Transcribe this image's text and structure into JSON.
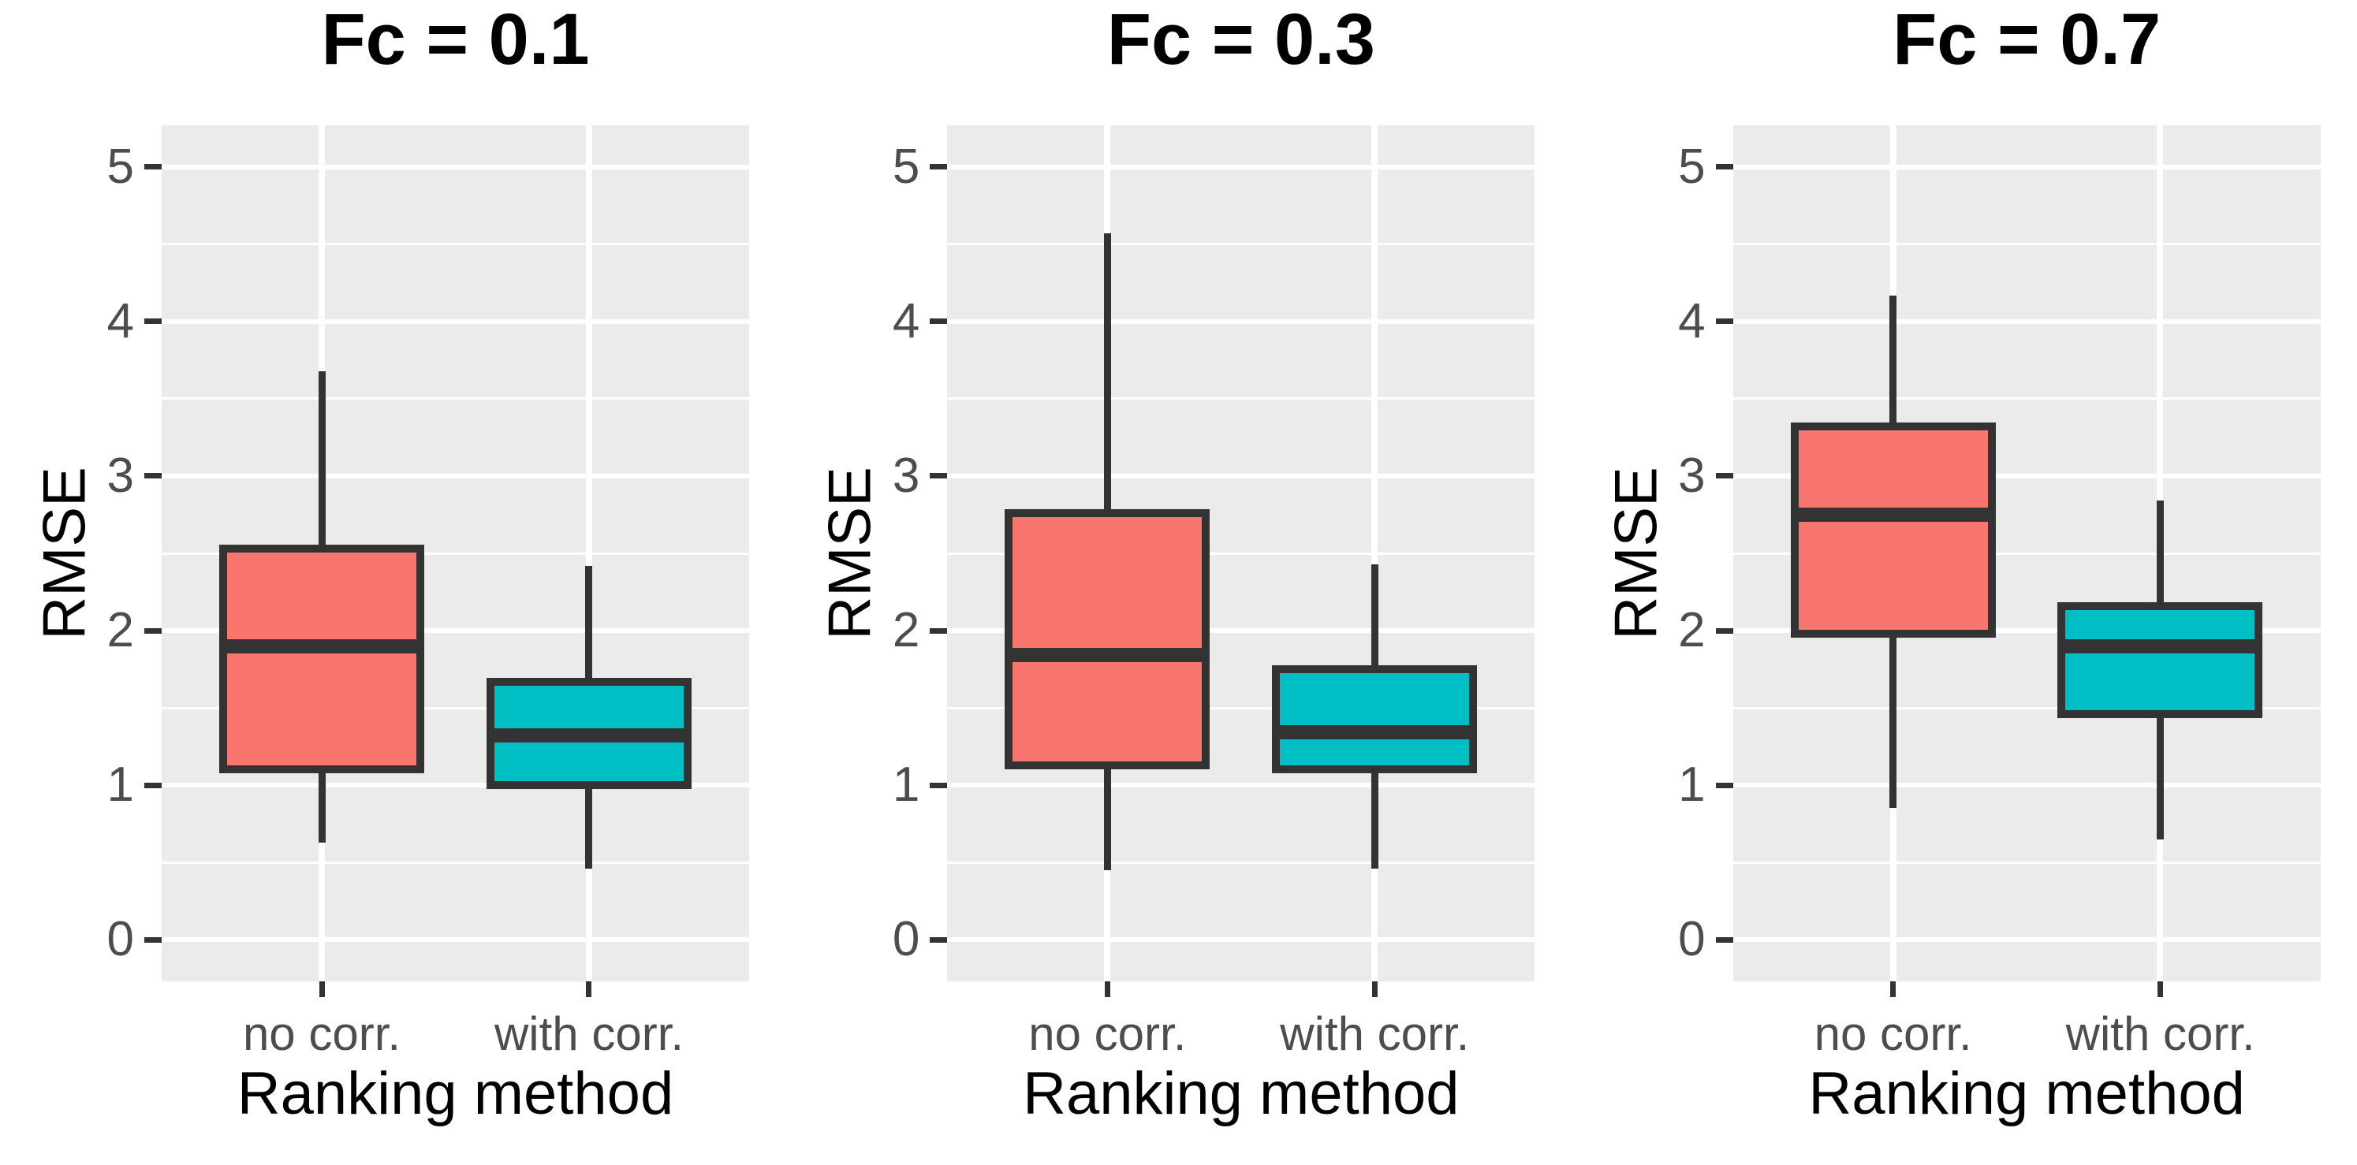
{
  "chart_data": {
    "type": "boxplot",
    "ylabel": "RMSE",
    "xlabel": "Ranking method",
    "categories": [
      "no corr.",
      "with corr."
    ],
    "ylim": [
      -0.27,
      5.27
    ],
    "y_major_ticks": [
      0,
      1,
      2,
      3,
      4,
      5
    ],
    "y_minor_ticks": [
      0.5,
      1.5,
      2.5,
      3.5,
      4.5
    ],
    "grid": true,
    "legend": false,
    "panels": [
      {
        "title": "Fc = 0.1",
        "boxes": [
          {
            "category": "no corr.",
            "fill": "#F8766D",
            "whisker_low": 0.63,
            "q1": 1.1,
            "median": 1.9,
            "q3": 2.53,
            "whisker_high": 3.68
          },
          {
            "category": "with corr.",
            "fill": "#00BFC4",
            "whisker_low": 0.46,
            "q1": 1.0,
            "median": 1.32,
            "q3": 1.67,
            "whisker_high": 2.42
          }
        ]
      },
      {
        "title": "Fc = 0.3",
        "boxes": [
          {
            "category": "no corr.",
            "fill": "#F8766D",
            "whisker_low": 0.45,
            "q1": 1.13,
            "median": 1.84,
            "q3": 2.76,
            "whisker_high": 4.57
          },
          {
            "category": "with corr.",
            "fill": "#00BFC4",
            "whisker_low": 0.46,
            "q1": 1.1,
            "median": 1.34,
            "q3": 1.75,
            "whisker_high": 2.43
          }
        ]
      },
      {
        "title": "Fc = 0.7",
        "boxes": [
          {
            "category": "no corr.",
            "fill": "#F8766D",
            "whisker_low": 0.85,
            "q1": 1.98,
            "median": 2.75,
            "q3": 3.32,
            "whisker_high": 4.17
          },
          {
            "category": "with corr.",
            "fill": "#00BFC4",
            "whisker_low": 0.65,
            "q1": 1.46,
            "median": 1.9,
            "q3": 2.16,
            "whisker_high": 2.84
          }
        ]
      }
    ]
  },
  "style": {
    "no_corr_fill": "#F8766D",
    "with_corr_fill": "#00BFC4",
    "box_border": "#333333",
    "panel_bg": "#EBEBEB",
    "grid_color": "#FFFFFF",
    "tick_color": "#333333",
    "tick_text_color": "#4D4D4D",
    "title_text_color": "#000000"
  }
}
